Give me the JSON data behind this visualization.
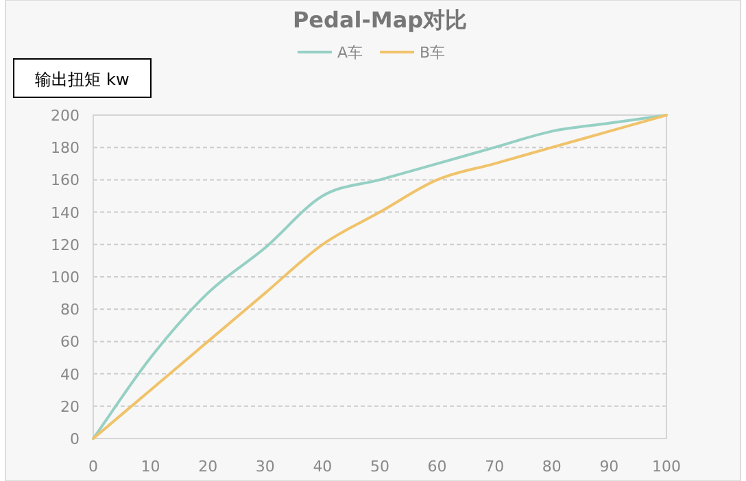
{
  "chart_data": {
    "type": "line",
    "title": "Pedal-Map对比",
    "ylabel": "输出扭矩  kw",
    "x": [
      0,
      10,
      20,
      30,
      40,
      50,
      60,
      70,
      80,
      90,
      100
    ],
    "series": [
      {
        "name": "A车",
        "color": "#96d0c4",
        "values": [
          0,
          50,
          90,
          118,
          150,
          160,
          170,
          180,
          190,
          195,
          200
        ]
      },
      {
        "name": "B车",
        "color": "#f0c36a",
        "values": [
          0,
          30,
          60,
          90,
          120,
          140,
          160,
          170,
          180,
          190,
          200
        ]
      }
    ],
    "xlim": [
      0,
      100
    ],
    "xticks": [
      0,
      10,
      20,
      30,
      40,
      50,
      60,
      70,
      80,
      90,
      100
    ],
    "ylim": [
      0,
      200
    ],
    "yticks": [
      0,
      20,
      40,
      60,
      80,
      100,
      120,
      140,
      160,
      180,
      200
    ],
    "grid": "y",
    "legend": "top",
    "marker": "none",
    "line_style": "solid"
  }
}
